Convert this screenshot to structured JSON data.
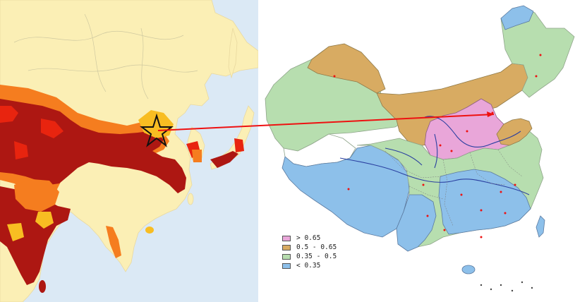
{
  "legend": {
    "items": [
      {
        "label": "> 0.65",
        "color": "#e9a6d9"
      },
      {
        "label": "0.5 - 0.65",
        "color": "#d8ab62"
      },
      {
        "label": "0.35 - 0.5",
        "color": "#b7deaf"
      },
      {
        "label": "< 0.35",
        "color": "#8dc0ea"
      }
    ]
  },
  "colors": {
    "left_sea": "#dbe9f5",
    "left_land": "#fbefb5",
    "dark_red": "#ad1712",
    "red": "#e8240f",
    "orange": "#f57d1f",
    "amber": "#f8bd22",
    "arrow": "#ee1111",
    "star": "#111111"
  },
  "icons": {
    "marker": "star-icon",
    "connector": "arrow-line"
  }
}
